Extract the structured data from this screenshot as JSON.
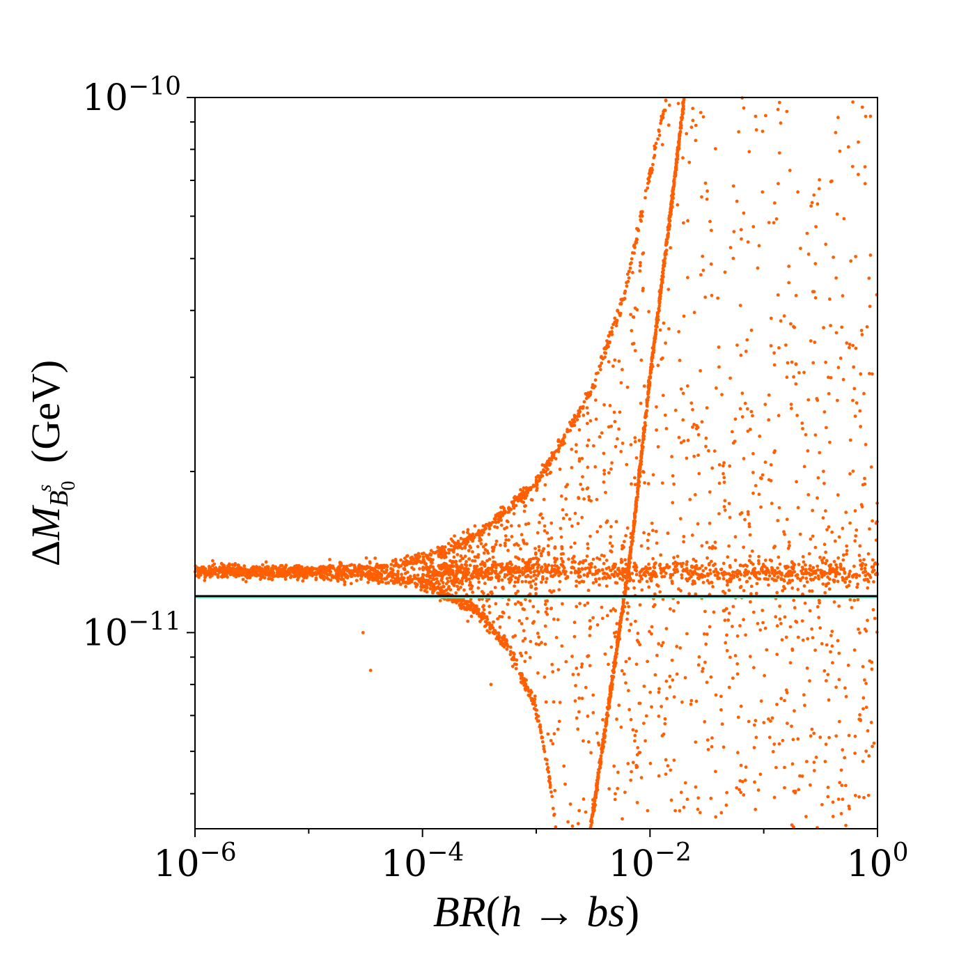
{
  "chart_data": {
    "type": "scatter",
    "title": "",
    "xlabel": "BR(h→bs)",
    "ylabel": "ΔM_{B_0^s} (GeV)",
    "x_scale": "log",
    "y_scale": "log",
    "xlim": [
      1e-06,
      1
    ],
    "ylim": [
      4.3e-12,
      1e-10
    ],
    "x_ticks": [
      {
        "base": "10",
        "exp": "−6"
      },
      {
        "base": "10",
        "exp": "−4"
      },
      {
        "base": "10",
        "exp": "−2"
      },
      {
        "base": "10",
        "exp": "0"
      }
    ],
    "y_ticks": [
      {
        "base": "10",
        "exp": "−10"
      },
      {
        "base": "10",
        "exp": "−11"
      }
    ],
    "grid": false,
    "legend": "none",
    "reference_line": {
      "y": 1.17e-11,
      "color": "#000000",
      "band_color": "#7fffd4"
    },
    "series": [
      {
        "color": "#ff5f00",
        "bands": [
          {
            "desc_x": "upper curve",
            "points": [
              [
                1e-06,
                1.3e-11
              ],
              [
                1e-05,
                1.305e-11
              ],
              [
                5e-05,
                1.33e-11
              ],
              [
                0.0001,
                1.37e-11
              ],
              [
                0.0003,
                1.52e-11
              ],
              [
                0.001,
                1.9e-11
              ],
              [
                0.003,
                2.8e-11
              ],
              [
                0.006,
                4.3e-11
              ],
              [
                0.01,
                7.2e-11
              ],
              [
                0.014,
                1e-10
              ]
            ]
          },
          {
            "desc_x": "lower curve",
            "points": [
              [
                1e-06,
                1.3e-11
              ],
              [
                1e-05,
                1.295e-11
              ],
              [
                5e-05,
                1.27e-11
              ],
              [
                0.0001,
                1.24e-11
              ],
              [
                0.0003,
                1.1e-11
              ],
              [
                0.0006,
                9.2e-12
              ],
              [
                0.001,
                7.2e-12
              ],
              [
                0.0013,
                5.4e-12
              ],
              [
                0.0015,
                4.3e-12
              ]
            ]
          },
          {
            "desc_x": "steep line",
            "points": [
              [
                0.003,
                4.3e-12
              ],
              [
                0.005,
                9e-12
              ],
              [
                0.007,
                1.5e-11
              ],
              [
                0.01,
                3e-11
              ],
              [
                0.015,
                6e-11
              ],
              [
                0.02,
                1e-10
              ]
            ]
          },
          {
            "desc_x": "flat band",
            "points": [
              [
                0.0001,
                1.3e-11
              ],
              [
                0.01,
                1.3e-11
              ],
              [
                1,
                1.3e-11
              ]
            ]
          }
        ]
      }
    ]
  }
}
